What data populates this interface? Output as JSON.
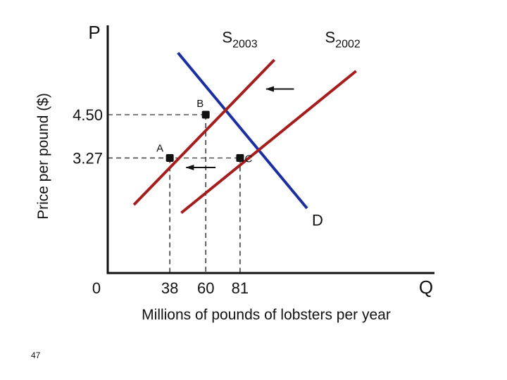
{
  "slide": {
    "number": "47"
  },
  "chart_data": {
    "type": "line",
    "title": "",
    "xlabel": "Millions of pounds of lobsters per year",
    "ylabel": "Price per pound ($)",
    "x_axis_letter": "Q",
    "y_axis_letter": "P",
    "origin_label": "0",
    "xlim": [
      0,
      200
    ],
    "ylim": [
      0,
      7.04
    ],
    "x_ticks": [
      38,
      60,
      81
    ],
    "y_ticks": [
      3.27,
      4.5
    ],
    "y_tick_labels": [
      "3.27",
      "4.50"
    ],
    "series": [
      {
        "name": "D",
        "color": "#1c2fa0",
        "points": [
          [
            43,
            6.26
          ],
          [
            122,
            1.84
          ]
        ]
      },
      {
        "name": "S2003",
        "color": "#a51d1d",
        "points": [
          [
            16,
            1.94
          ],
          [
            102,
            6.06
          ]
        ]
      },
      {
        "name": "S2002",
        "color": "#a51d1d",
        "points": [
          [
            45,
            1.71
          ],
          [
            152,
            5.74
          ]
        ]
      }
    ],
    "curve_labels": [
      {
        "base": "S",
        "sub": "2003",
        "x": 70,
        "y": 6.55
      },
      {
        "base": "S",
        "sub": "2002",
        "x": 133,
        "y": 6.55
      },
      {
        "base": "D",
        "sub": "",
        "x": 125,
        "y": 1.35
      }
    ],
    "equilibrium_points": [
      {
        "label": "A",
        "x": 38,
        "y": 3.27
      },
      {
        "label": "B",
        "x": 60,
        "y": 4.5
      },
      {
        "label": "C",
        "x": 81,
        "y": 3.27
      }
    ],
    "arrows": [
      {
        "from": [
          114,
          5.23
        ],
        "to": [
          97,
          5.23
        ]
      },
      {
        "from": [
          66,
          3.0
        ],
        "to": [
          48,
          3.0
        ]
      }
    ],
    "grid": false,
    "legend": "none"
  }
}
